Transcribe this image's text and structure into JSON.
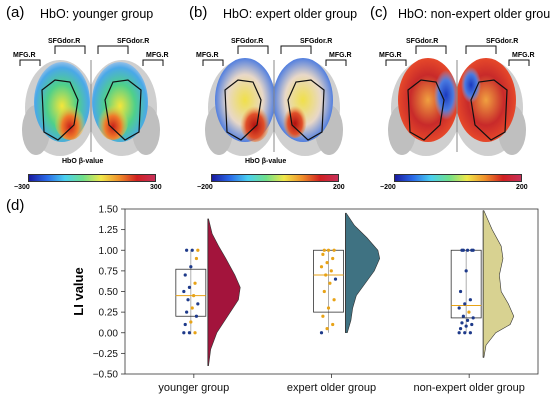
{
  "panels": [
    {
      "letter": "(a)",
      "title": "HbO: younger group",
      "labels": {
        "sfg_left": "SFGdor.R",
        "sfg_right": "SFGdor.R",
        "mfg_left": "MFG.R",
        "mfg_right": "MFG.R"
      },
      "colorbar": {
        "title": "HbO β-value",
        "min": "−300",
        "max": "300"
      }
    },
    {
      "letter": "(b)",
      "title": "HbO: expert older group",
      "labels": {
        "sfg_left": "SFGdor.R",
        "sfg_right": "SFGdor.R",
        "mfg_left": "MFG.R",
        "mfg_right": "MFG.R"
      },
      "colorbar": {
        "title": "HbO β-value",
        "min": "−200",
        "max": "200"
      }
    },
    {
      "letter": "(c)",
      "title": "HbO: non-expert older group",
      "labels": {
        "sfg_left": "SFGdor.R",
        "sfg_right": "SFGdor.R",
        "mfg_left": "MFG.R",
        "mfg_right": "MFG.R"
      },
      "colorbar": {
        "title": "",
        "min": "−200",
        "max": "200"
      }
    }
  ],
  "panel_d_letter": "(d)",
  "chart_data": {
    "type": "raincloud",
    "ylabel": "LI value",
    "ylim": [
      -0.5,
      1.5
    ],
    "yticks": [
      -0.5,
      -0.25,
      0.0,
      0.25,
      0.5,
      0.75,
      1.0,
      1.25,
      1.5
    ],
    "ytick_labels": [
      "−0.50",
      "−0.25",
      "0.00",
      "0.25",
      "0.50",
      "0.75",
      "1.00",
      "1.25",
      "1.50"
    ],
    "categories": [
      "younger group",
      "expert older group",
      "non-expert older group"
    ],
    "series": [
      {
        "color": "#a3143c",
        "box": {
          "q1": 0.2,
          "median": 0.45,
          "q3": 0.77,
          "whisker_low": -0.02,
          "whisker_high": 1.0
        },
        "density_extent": [
          -0.4,
          1.38
        ],
        "density_shape": [
          [
            -0.4,
            0.02
          ],
          [
            -0.2,
            0.08
          ],
          [
            0.0,
            0.25
          ],
          [
            0.2,
            0.55
          ],
          [
            0.4,
            0.85
          ],
          [
            0.55,
            0.9
          ],
          [
            0.7,
            0.75
          ],
          [
            0.9,
            0.5
          ],
          [
            1.05,
            0.3
          ],
          [
            1.2,
            0.12
          ],
          [
            1.38,
            0.02
          ]
        ],
        "points": [
          0.0,
          0.0,
          0.0,
          0.1,
          0.13,
          0.2,
          0.25,
          0.3,
          0.35,
          0.4,
          0.45,
          0.5,
          0.55,
          0.6,
          0.7,
          0.8,
          0.9,
          1.0,
          1.0,
          1.0
        ],
        "point_colors": [
          "#1e3a8a",
          "#1e3a8a",
          "#e8a317",
          "#1e3a8a",
          "#e8a317",
          "#1e3a8a",
          "#1e3a8a",
          "#e8a317",
          "#1e3a8a",
          "#1e3a8a",
          "#e8a317",
          "#1e3a8a",
          "#1e3a8a",
          "#e8a317",
          "#1e3a8a",
          "#1e3a8a",
          "#e8a317",
          "#1e3a8a",
          "#1e3a8a",
          "#e8a317"
        ]
      },
      {
        "color": "#3f7282",
        "box": {
          "q1": 0.25,
          "median": 0.7,
          "q3": 1.0,
          "whisker_low": 0.0,
          "whisker_high": 1.0
        },
        "density_extent": [
          0.0,
          1.45
        ],
        "density_shape": [
          [
            0.0,
            0.05
          ],
          [
            0.15,
            0.15
          ],
          [
            0.3,
            0.2
          ],
          [
            0.45,
            0.3
          ],
          [
            0.6,
            0.55
          ],
          [
            0.75,
            0.8
          ],
          [
            0.9,
            0.95
          ],
          [
            1.0,
            0.9
          ],
          [
            1.15,
            0.6
          ],
          [
            1.3,
            0.25
          ],
          [
            1.45,
            0.02
          ]
        ],
        "points": [
          0.0,
          0.05,
          0.1,
          0.2,
          0.3,
          0.4,
          0.5,
          0.6,
          0.65,
          0.7,
          0.75,
          0.8,
          0.85,
          0.9,
          0.95,
          1.0,
          1.0,
          1.0
        ],
        "point_colors": [
          "#1e3a8a",
          "#e8a317",
          "#e8a317",
          "#e8a317",
          "#e8a317",
          "#e8a317",
          "#e8a317",
          "#e8a317",
          "#1e3a8a",
          "#e8a317",
          "#e8a317",
          "#e8a317",
          "#e8a317",
          "#e8a317",
          "#e8a317",
          "#e8a317",
          "#e8a317",
          "#e8a317"
        ]
      },
      {
        "color": "#d8d291",
        "box": {
          "q1": 0.18,
          "median": 0.33,
          "q3": 1.0,
          "whisker_low": 0.0,
          "whisker_high": 1.0
        },
        "density_extent": [
          -0.3,
          1.48
        ],
        "density_shape": [
          [
            -0.3,
            0.02
          ],
          [
            -0.15,
            0.08
          ],
          [
            0.0,
            0.35
          ],
          [
            0.1,
            0.75
          ],
          [
            0.2,
            0.85
          ],
          [
            0.35,
            0.7
          ],
          [
            0.5,
            0.5
          ],
          [
            0.7,
            0.45
          ],
          [
            0.9,
            0.55
          ],
          [
            1.05,
            0.5
          ],
          [
            1.25,
            0.25
          ],
          [
            1.48,
            0.02
          ]
        ],
        "points": [
          0.0,
          0.0,
          0.0,
          0.05,
          0.08,
          0.1,
          0.12,
          0.15,
          0.18,
          0.2,
          0.25,
          0.3,
          0.35,
          0.4,
          0.5,
          0.75,
          1.0,
          1.0,
          1.0,
          1.0,
          1.0
        ],
        "point_colors": [
          "#1e3a8a",
          "#1e3a8a",
          "#1e3a8a",
          "#1e3a8a",
          "#1e3a8a",
          "#1e3a8a",
          "#1e3a8a",
          "#1e3a8a",
          "#1e3a8a",
          "#1e3a8a",
          "#e8a317",
          "#1e3a8a",
          "#1e3a8a",
          "#1e3a8a",
          "#1e3a8a",
          "#1e3a8a",
          "#1e3a8a",
          "#1e3a8a",
          "#1e3a8a",
          "#1e3a8a",
          "#1e3a8a"
        ]
      }
    ]
  }
}
